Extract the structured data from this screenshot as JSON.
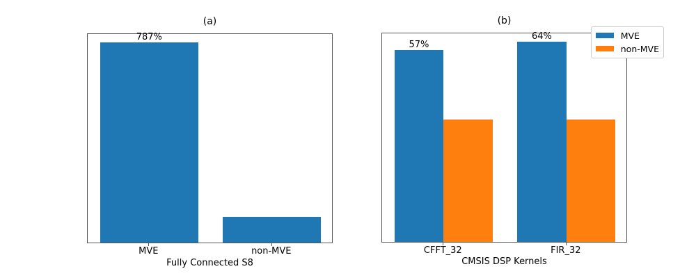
{
  "figure": {
    "background": "#ffffff"
  },
  "colors": {
    "mve": "#1f77b4",
    "non_mve": "#ff7f0e",
    "frame": "#555555",
    "legend_border": "#cccccc",
    "text": "#000000"
  },
  "chart_data": [
    {
      "type": "bar",
      "title": "(a)",
      "xlabel": "Fully Connected S8",
      "categories": [
        "MVE",
        "non-MVE"
      ],
      "values": [
        787,
        100
      ],
      "bar_labels": [
        "787%",
        ""
      ],
      "bar_color": "#1f77b4",
      "bar_width": 0.8,
      "ylim": [
        0,
        826
      ],
      "yaxis_visible": false,
      "grid": false
    },
    {
      "type": "bar",
      "title": "(b)",
      "xlabel": "CMSIS DSP Kernels",
      "categories": [
        "CFFT_32",
        "FIR_32"
      ],
      "series": [
        {
          "name": "MVE",
          "color": "#1f77b4",
          "values": [
            157,
            164
          ],
          "bar_labels": [
            "57%",
            "64%"
          ]
        },
        {
          "name": "non-MVE",
          "color": "#ff7f0e",
          "values": [
            100,
            100
          ],
          "bar_labels": [
            "",
            ""
          ]
        }
      ],
      "bar_width": 0.4,
      "ylim": [
        0,
        172
      ],
      "yaxis_visible": false,
      "grid": false,
      "legend": {
        "position": "upper right",
        "entries": [
          "MVE",
          "non-MVE"
        ]
      }
    }
  ]
}
